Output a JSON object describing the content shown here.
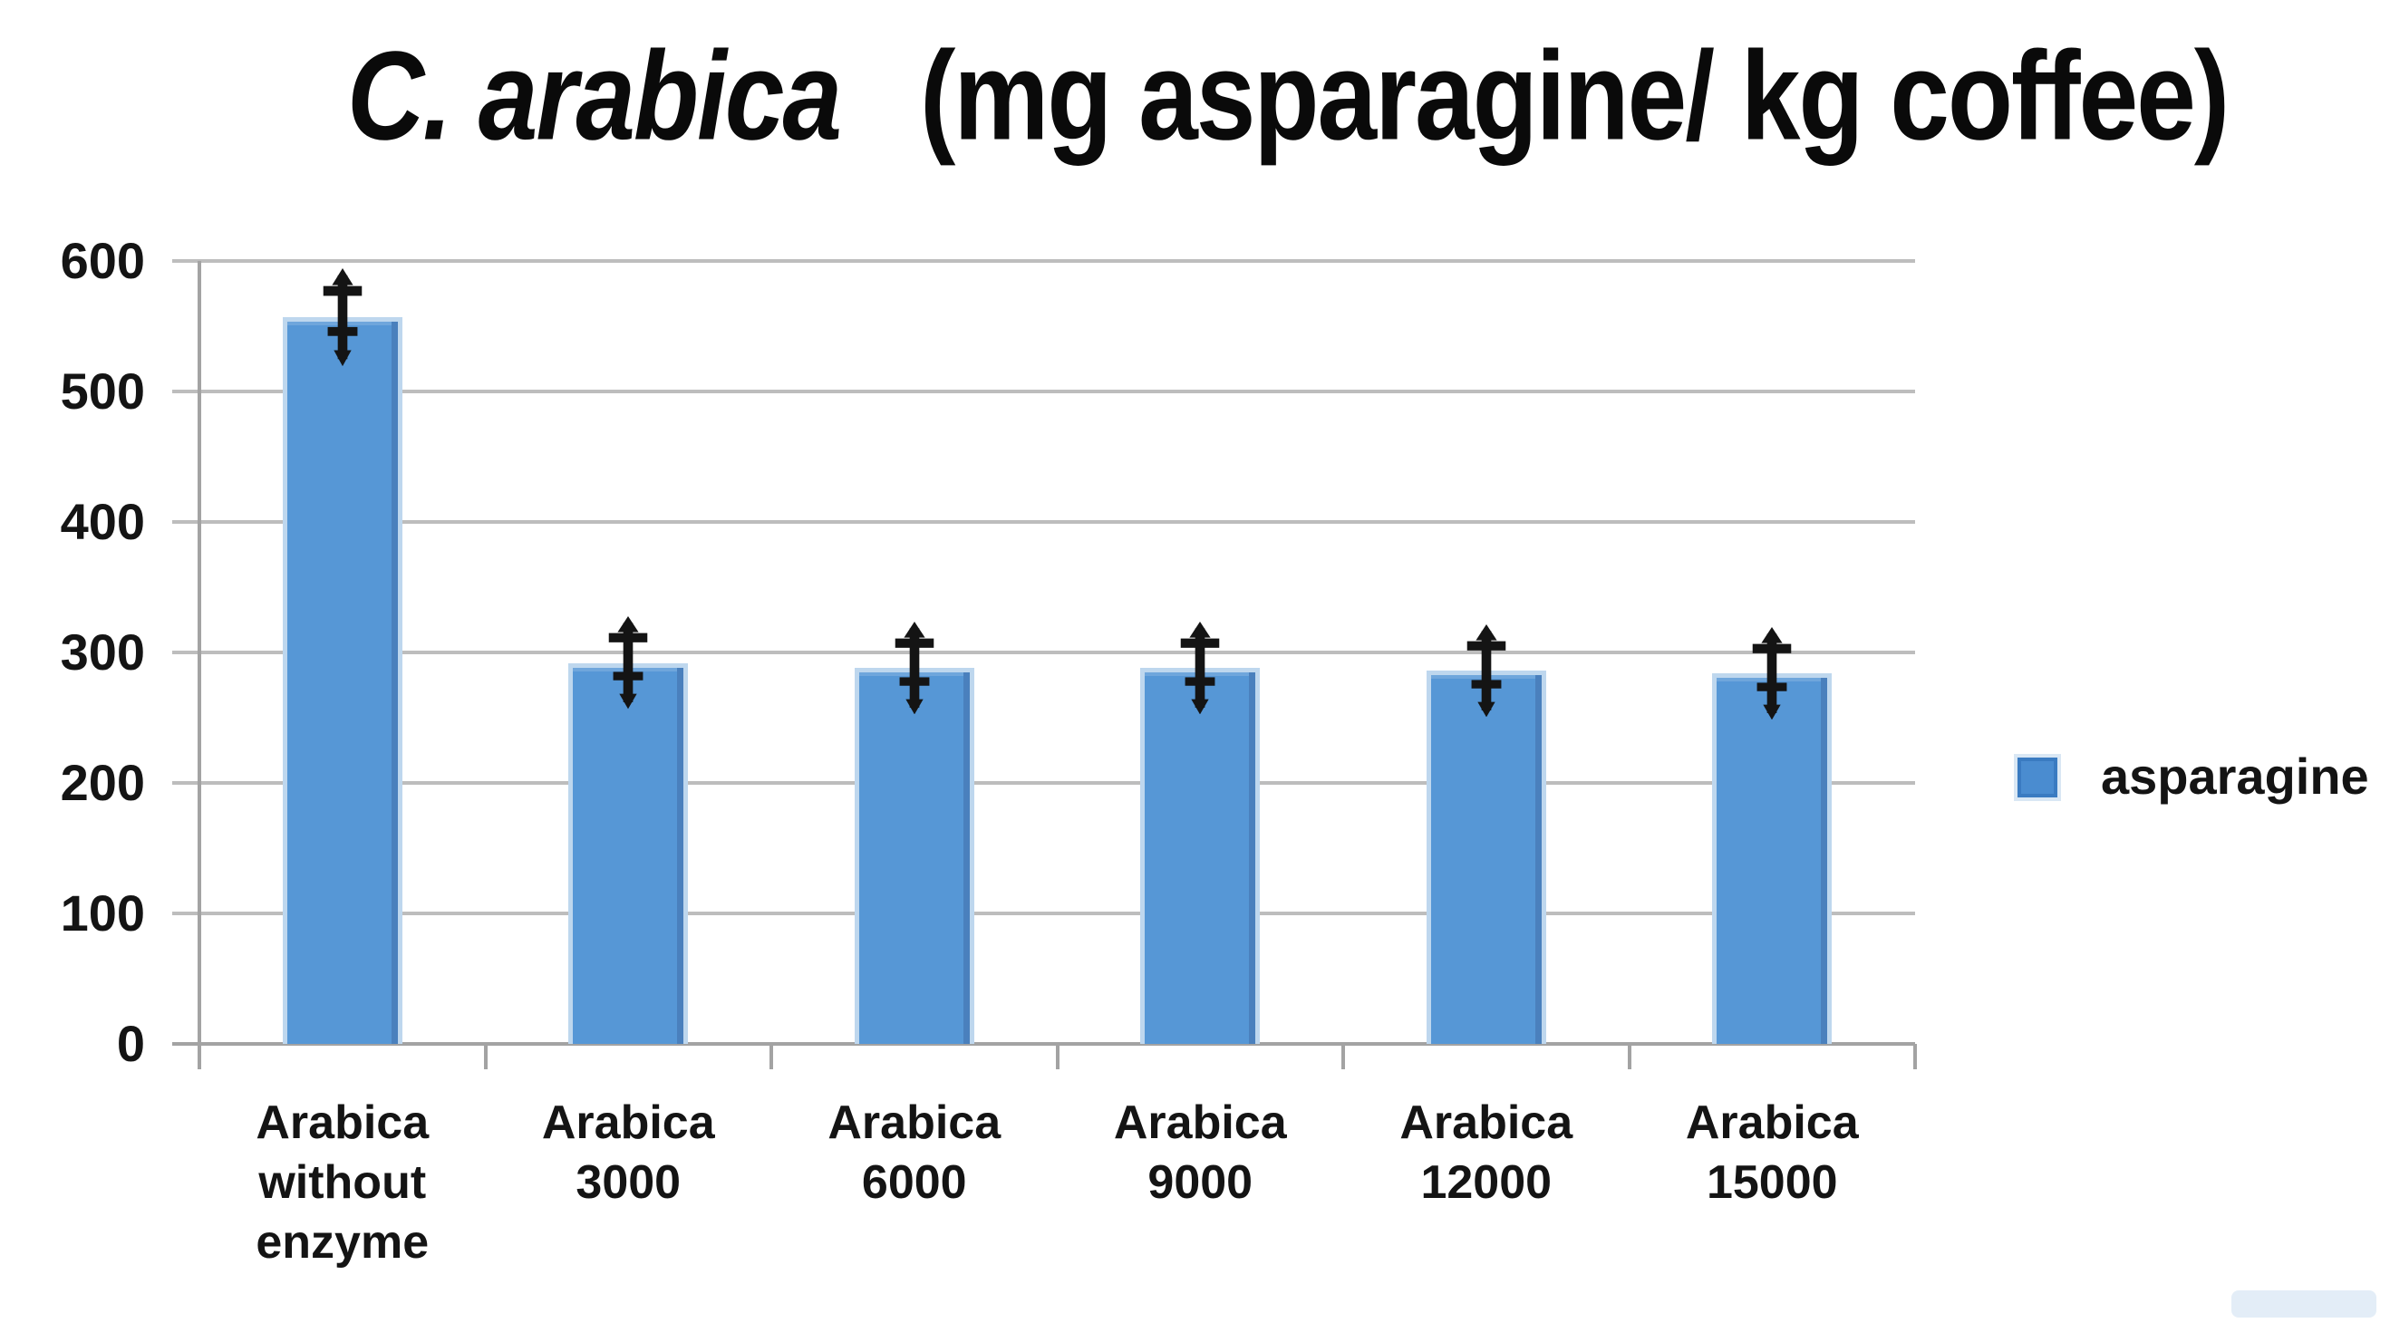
{
  "page": {
    "background": "#ffffff"
  },
  "chart_data": {
    "type": "bar",
    "title": "C. arabica (mg asparagine/ kg coffee)",
    "title_italic_part": "C. arabica",
    "title_regular_part": "(mg asparagine/ kg coffee)",
    "categories": [
      "Arabica without enzyme",
      "Arabica 3000",
      "Arabica 6000",
      "Arabica 9000",
      "Arabica 12000",
      "Arabica 15000"
    ],
    "category_label_lines": [
      "Arabica\nwithout\nenzyme",
      "Arabica\n3000",
      "Arabica\n6000",
      "Arabica\n9000",
      "Arabica\n12000",
      "Arabica\n15000"
    ],
    "series": [
      {
        "name": "asparagine",
        "values": [
          557,
          292,
          288,
          288,
          286,
          284
        ],
        "error_bars": [
          32,
          30,
          30,
          30,
          30,
          30
        ]
      }
    ],
    "ylabel": "",
    "xlabel": "",
    "ylim": [
      0,
      600
    ],
    "yticks": [
      0,
      100,
      200,
      300,
      400,
      500,
      600
    ],
    "grid": true,
    "legend_position": "right",
    "legend_entries": [
      "asparagine"
    ],
    "colors": {
      "bar_fill": "#5697d6",
      "bar_border_light": "#bed7ee",
      "bar_edge_dark": "#4a80bd",
      "legend_marker_fill": "#4a8cd0",
      "legend_marker_border": "#3a7bc1",
      "legend_marker_halo": "#d9e7f4",
      "gridline": "#bdbdbd",
      "axis": "#a3a3a3",
      "error_bar": "#141414",
      "text": "#141414"
    }
  }
}
